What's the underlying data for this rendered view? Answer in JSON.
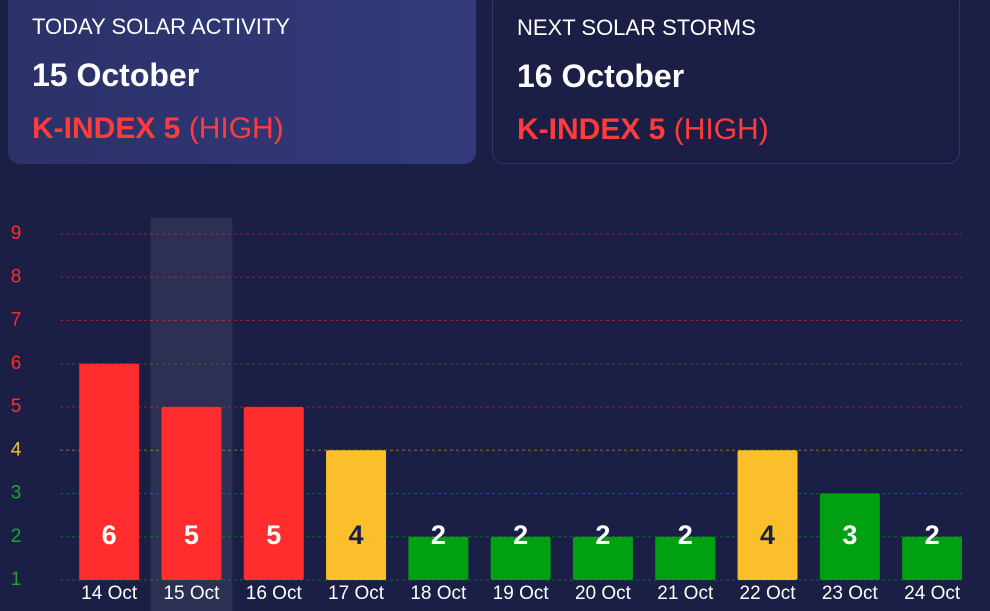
{
  "cards": [
    {
      "label": "TODAY SOLAR ACTIVITY",
      "date": "15 October",
      "index": "K-INDEX 5",
      "level": "(HIGH)"
    },
    {
      "label": "NEXT SOLAR STORMS",
      "date": "16 October",
      "index": "K-INDEX 5",
      "level": "(HIGH)"
    }
  ],
  "chart_data": {
    "type": "bar",
    "categories": [
      "14 Oct",
      "15 Oct",
      "16 Oct",
      "17 Oct",
      "18 Oct",
      "19 Oct",
      "20 Oct",
      "21 Oct",
      "22 Oct",
      "23 Oct",
      "24 Oct"
    ],
    "values": [
      6,
      5,
      5,
      4,
      2,
      2,
      2,
      2,
      4,
      3,
      2
    ],
    "colors": [
      "#ff2d2d",
      "#ff2d2d",
      "#ff2d2d",
      "#fbbf2c",
      "#00a012",
      "#00a012",
      "#00a012",
      "#00a012",
      "#fbbf2c",
      "#00a012",
      "#00a012"
    ],
    "value_label_colors": [
      "#ffffff",
      "#ffffff",
      "#ffffff",
      "#1b1f45",
      "#ffffff",
      "#ffffff",
      "#ffffff",
      "#ffffff",
      "#1b1f45",
      "#ffffff",
      "#ffffff"
    ],
    "ylim": [
      1,
      9
    ],
    "yticks": [
      1,
      2,
      3,
      4,
      5,
      6,
      7,
      8,
      9
    ],
    "ytick_colors": [
      "#1fa32e",
      "#1fa32e",
      "#1fa32e",
      "#fbbf2c",
      "#ff2d2d",
      "#ff2d2d",
      "#ff2d2d",
      "#ff2d2d",
      "#ff2d2d"
    ],
    "grid": true,
    "selected_index": 1
  }
}
